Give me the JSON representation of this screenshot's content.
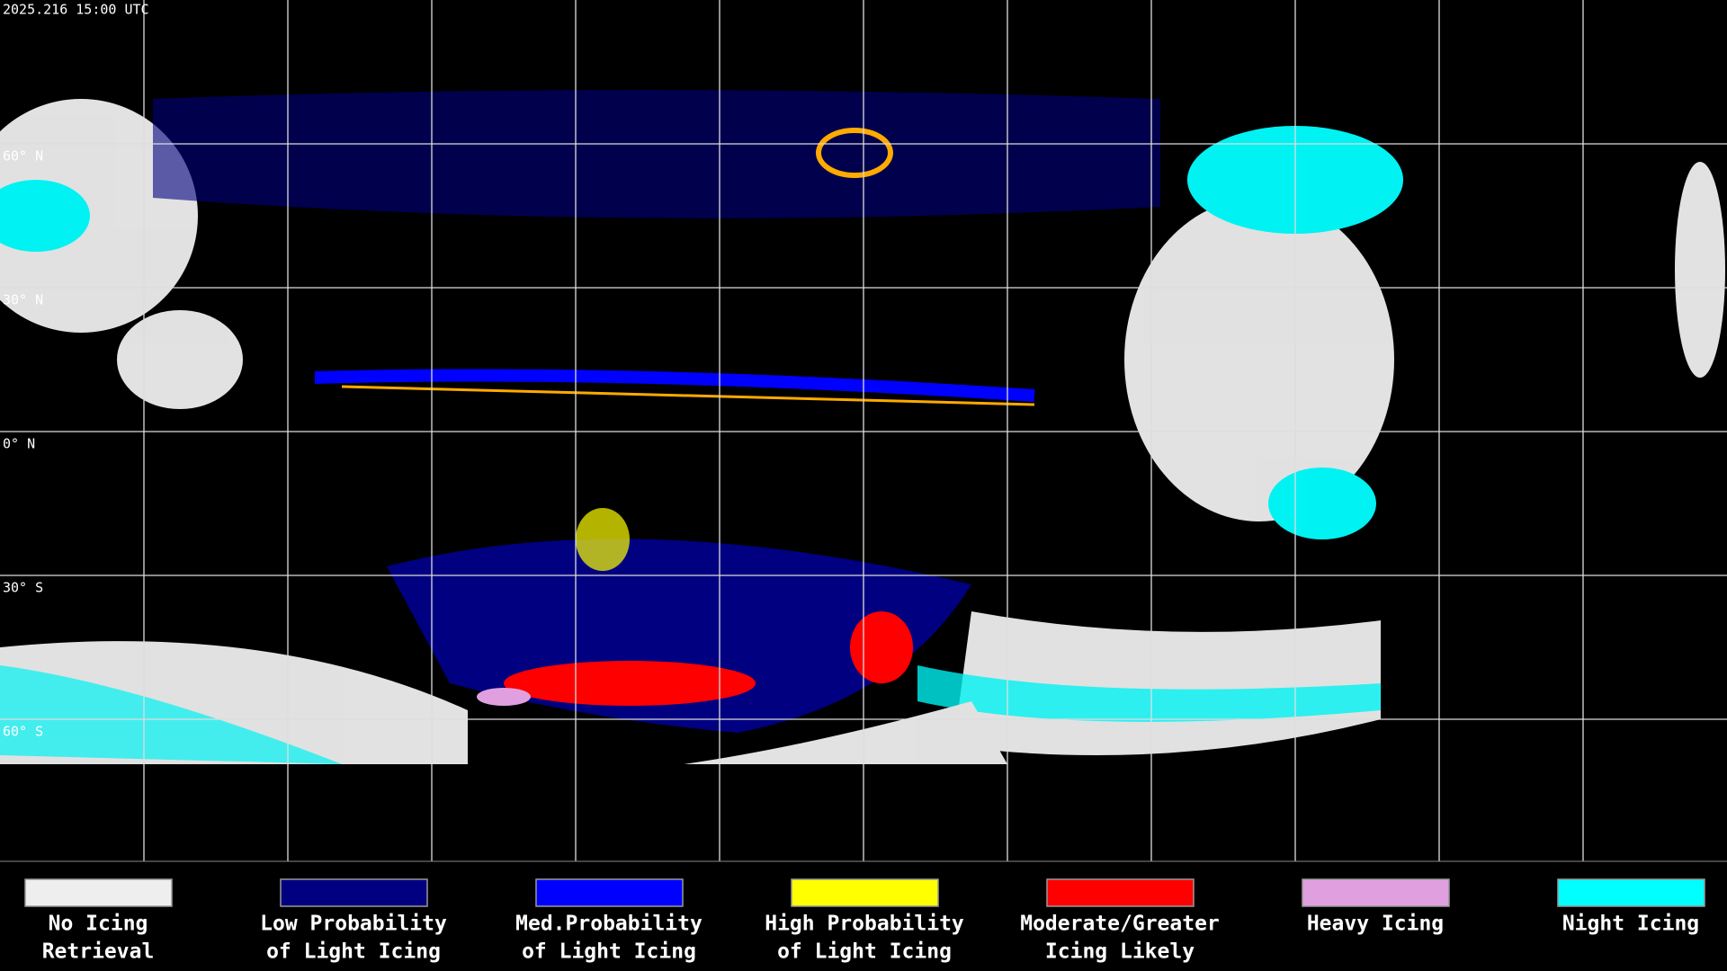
{
  "header": {
    "timestamp": "2025.216 15:00 UTC"
  },
  "map": {
    "lat_labels": [
      "60° N",
      "30° N",
      "0° N",
      "30° S",
      "60° S"
    ]
  },
  "legend": [
    {
      "lines": [
        "No Icing",
        "Retrieval"
      ],
      "color": "#eeeeee"
    },
    {
      "lines": [
        "Low Probability",
        "of Light Icing"
      ],
      "color": "#000080"
    },
    {
      "lines": [
        "Med.Probability",
        "of Light Icing"
      ],
      "color": "#0000ff"
    },
    {
      "lines": [
        "High Probability",
        "of Light Icing"
      ],
      "color": "#ffff00"
    },
    {
      "lines": [
        "Moderate/Greater",
        "Icing Likely"
      ],
      "color": "#ff0000"
    },
    {
      "lines": [
        "Heavy Icing"
      ],
      "color": "#e0a0e0"
    },
    {
      "lines": [
        "Night Icing"
      ],
      "color": "#00ffff"
    }
  ]
}
